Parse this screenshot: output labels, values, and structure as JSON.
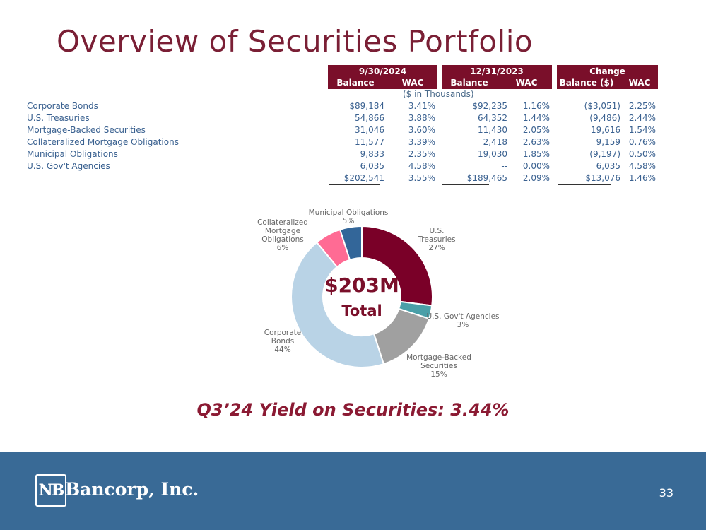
{
  "title": "Overview of Securities Portfolio",
  "table": {
    "periods": [
      "9/30/2024",
      "12/31/2023",
      "Change"
    ],
    "subheaders": [
      "Balance",
      "WAC",
      "Balance",
      "WAC",
      "Balance ($)",
      "WAC"
    ],
    "units": "($ in Thousands)",
    "rows": [
      {
        "label": "Corporate Bonds",
        "v": [
          "$89,184",
          "3.41%",
          "$92,235",
          "1.16%",
          "($3,051)",
          "2.25%"
        ]
      },
      {
        "label": "U.S. Treasuries",
        "v": [
          "54,866",
          "3.88%",
          "64,352",
          "1.44%",
          "(9,486)",
          "2.44%"
        ]
      },
      {
        "label": "Mortgage-Backed Securities",
        "v": [
          "31,046",
          "3.60%",
          "11,430",
          "2.05%",
          "19,616",
          "1.54%"
        ]
      },
      {
        "label": "Collateralized Mortgage Obligations",
        "v": [
          "11,577",
          "3.39%",
          "2,418",
          "2.63%",
          "9,159",
          "0.76%"
        ]
      },
      {
        "label": "Municipal Obligations",
        "v": [
          "9,833",
          "2.35%",
          "19,030",
          "1.85%",
          "(9,197)",
          "0.50%"
        ]
      },
      {
        "label": "U.S. Gov't Agencies",
        "v": [
          "6,035",
          "4.58%",
          "--",
          "0.00%",
          "6,035",
          "4.58%"
        ]
      }
    ],
    "total": [
      "$202,541",
      "3.55%",
      "$189,465",
      "2.09%",
      "$13,076",
      "1.46%"
    ]
  },
  "chart_data": {
    "type": "pie",
    "variant": "donut",
    "center_amount": "$203M",
    "center_label": "Total",
    "slices": [
      {
        "name": "U.S. Treasuries",
        "label_lines": [
          "U.S.",
          "Treasuries"
        ],
        "pct_label": "27%",
        "value": 27,
        "color": "#7a0028"
      },
      {
        "name": "U.S. Gov't Agencies",
        "label_lines": [
          "U.S. Gov't Agencies"
        ],
        "pct_label": "3%",
        "value": 3,
        "color": "#4a9fa8"
      },
      {
        "name": "Mortgage-Backed Securities",
        "label_lines": [
          "Mortgage-Backed",
          "Securities"
        ],
        "pct_label": "15%",
        "value": 15,
        "color": "#a0a0a0"
      },
      {
        "name": "Corporate Bonds",
        "label_lines": [
          "Corporate",
          "Bonds"
        ],
        "pct_label": "44%",
        "value": 44,
        "color": "#b9d3e6"
      },
      {
        "name": "Collateralized Mortgage Obligations",
        "label_lines": [
          "Collateralized",
          "Mortgage",
          "Obligations"
        ],
        "pct_label": "6%",
        "value": 6,
        "color": "#ff6b94"
      },
      {
        "name": "Municipal Obligations",
        "label_lines": [
          "Municipal Obligations"
        ],
        "pct_label": "5%",
        "value": 5,
        "color": "#336699"
      }
    ]
  },
  "yield_text": "Q3’24 Yield on Securities: 3.44%",
  "footer": {
    "logo_mark": "NB",
    "company": "Bancorp, Inc.",
    "page_number": "33"
  }
}
